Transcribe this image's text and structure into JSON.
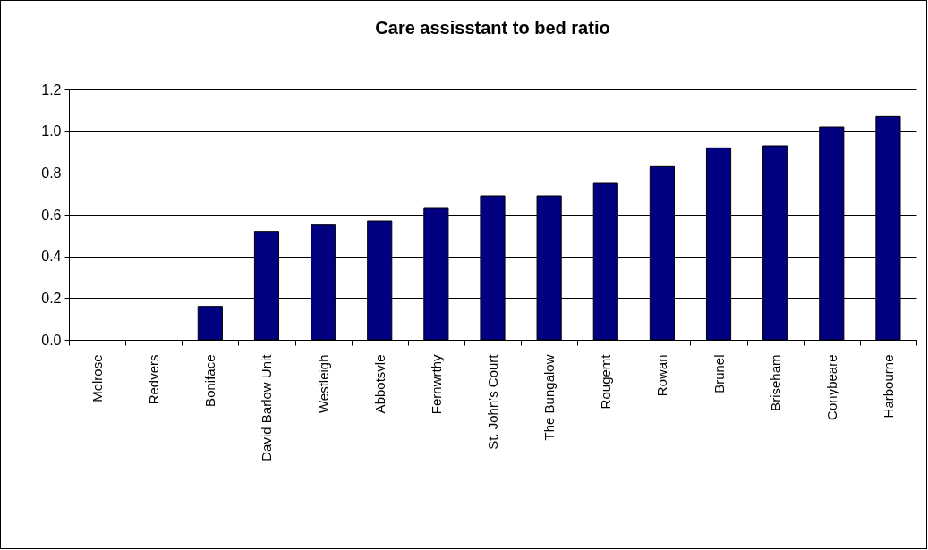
{
  "chart_data": {
    "type": "bar",
    "title": "Care assisstant to bed ratio",
    "categories": [
      "Melrose",
      "Redvers",
      "Boniface",
      "David Barlow Unit",
      "Westleigh",
      "Abbotsvle",
      "Fernwrthy",
      "St. John's Court",
      "The Bungalow",
      "Rougemt",
      "Rowan",
      "Brunel",
      "Briseham",
      "Conybeare",
      "Harbourne"
    ],
    "values": [
      0,
      0,
      0.16,
      0.52,
      0.55,
      0.57,
      0.63,
      0.69,
      0.69,
      0.75,
      0.83,
      0.92,
      0.93,
      1.02,
      1.07
    ],
    "color": "#000080",
    "ylim": [
      0,
      1.2
    ],
    "yticks": [
      {
        "value": 0,
        "label": "0.0"
      },
      {
        "value": 0.2,
        "label": "0.2"
      },
      {
        "value": 0.4,
        "label": "0.4"
      },
      {
        "value": 0.6,
        "label": "0.6"
      },
      {
        "value": 0.8,
        "label": "0.8"
      },
      {
        "value": 1,
        "label": "1.0"
      },
      {
        "value": 1.2,
        "label": "1.2"
      }
    ],
    "grid": "y"
  }
}
